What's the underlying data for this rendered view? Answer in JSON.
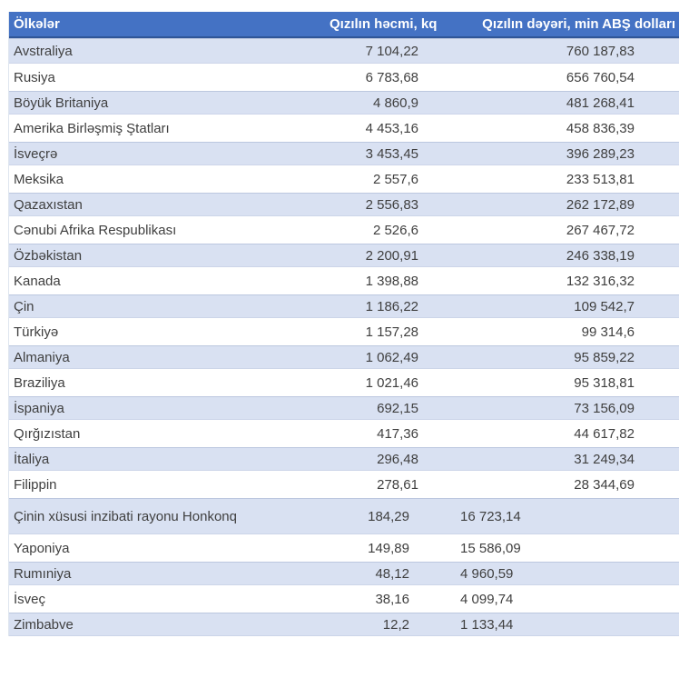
{
  "table": {
    "headers": [
      {
        "label": "Ölkələr"
      },
      {
        "label": "Qızılın həcmi, kq"
      },
      {
        "label": "Qızılın dəyəri, min ABŞ dolları"
      }
    ],
    "rows": [
      {
        "country": "Avstraliya",
        "volume": "7 104,22",
        "value": "760 187,83"
      },
      {
        "country": "Rusiya",
        "volume": "6 783,68",
        "value": "656 760,54"
      },
      {
        "country": "Böyük Britaniya",
        "volume": "4 860,9",
        "value": "481 268,41"
      },
      {
        "country": "Amerika Birləşmiş Ştatları",
        "volume": "4 453,16",
        "value": "458 836,39"
      },
      {
        "country": "İsveçrə",
        "volume": "3 453,45",
        "value": "396 289,23"
      },
      {
        "country": "Meksika",
        "volume": "2 557,6",
        "value": "233 513,81"
      },
      {
        "country": "Qazaxıstan",
        "volume": "2 556,83",
        "value": "262 172,89"
      },
      {
        "country": "Cənubi Afrika Respublikası",
        "volume": "2 526,6",
        "value": "267 467,72"
      },
      {
        "country": "Özbəkistan",
        "volume": "2 200,91",
        "value": "246 338,19"
      },
      {
        "country": "Kanada",
        "volume": "1 398,88",
        "value": "132 316,32"
      },
      {
        "country": "Çin",
        "volume": "1 186,22",
        "value": "109 542,7"
      },
      {
        "country": "Türkiyə",
        "volume": "1 157,28",
        "value": "99 314,6"
      },
      {
        "country": "Almaniya",
        "volume": "1 062,49",
        "value": "95 859,22"
      },
      {
        "country": "Braziliya",
        "volume": "1 021,46",
        "value": "95 318,81"
      },
      {
        "country": "İspaniya",
        "volume": "692,15",
        "value": "73 156,09"
      },
      {
        "country": "Qırğızıstan",
        "volume": "417,36",
        "value": "44 617,82"
      },
      {
        "country": "İtaliya",
        "volume": "296,48",
        "value": "31 249,34"
      },
      {
        "country": "Filippin",
        "volume": "278,61",
        "value": "28 344,69"
      },
      {
        "country": "Çinin xüsusi inzibati rayonu Honkonq",
        "volume": "184,29",
        "value": "16 723,14",
        "value_align": "left",
        "tall": true
      },
      {
        "country": "Yaponiya",
        "volume": "149,89",
        "value": "15 586,09",
        "value_align": "left"
      },
      {
        "country": "Rumıniya",
        "volume": "48,12",
        "value": "4 960,59",
        "value_align": "left"
      },
      {
        "country": "İsveç",
        "volume": "38,16",
        "value": "4 099,74",
        "value_align": "left"
      },
      {
        "country": "Zimbabve",
        "volume": "12,2",
        "value": "1 133,44",
        "value_align": "left"
      }
    ]
  },
  "chart_data": {
    "type": "table",
    "title": "",
    "categories": [
      "Avstraliya",
      "Rusiya",
      "Böyük Britaniya",
      "Amerika Birləşmiş Ştatları",
      "İsveçrə",
      "Meksika",
      "Qazaxıstan",
      "Cənubi Afrika Respublikası",
      "Özbəkistan",
      "Kanada",
      "Çin",
      "Türkiyə",
      "Almaniya",
      "Braziliya",
      "İspaniya",
      "Qırğızıstan",
      "İtaliya",
      "Filippin",
      "Çinin xüsusi inzibati rayonu Honkonq",
      "Yaponiya",
      "Rumıniya",
      "İsveç",
      "Zimbabve"
    ],
    "series": [
      {
        "name": "Qızılın həcmi, kq",
        "values": [
          7104.22,
          6783.68,
          4860.9,
          4453.16,
          3453.45,
          2557.6,
          2556.83,
          2526.6,
          2200.91,
          1398.88,
          1186.22,
          1157.28,
          1062.49,
          1021.46,
          692.15,
          417.36,
          296.48,
          278.61,
          184.29,
          149.89,
          48.12,
          38.16,
          12.2
        ]
      },
      {
        "name": "Qızılın dəyəri, min ABŞ dolları",
        "values": [
          760187.83,
          656760.54,
          481268.41,
          458836.39,
          396289.23,
          233513.81,
          262172.89,
          267467.72,
          246338.19,
          132316.32,
          109542.7,
          99314.6,
          95859.22,
          95318.81,
          73156.09,
          44617.82,
          31249.34,
          28344.69,
          16723.14,
          15586.09,
          4960.59,
          4099.74,
          1133.44
        ]
      }
    ]
  },
  "colors": {
    "header_bg": "#4472C4",
    "header_border": "#2F5597",
    "band_row_bg": "#D9E1F2",
    "text": "#3F3F3F",
    "header_text": "#FFFFFF"
  }
}
